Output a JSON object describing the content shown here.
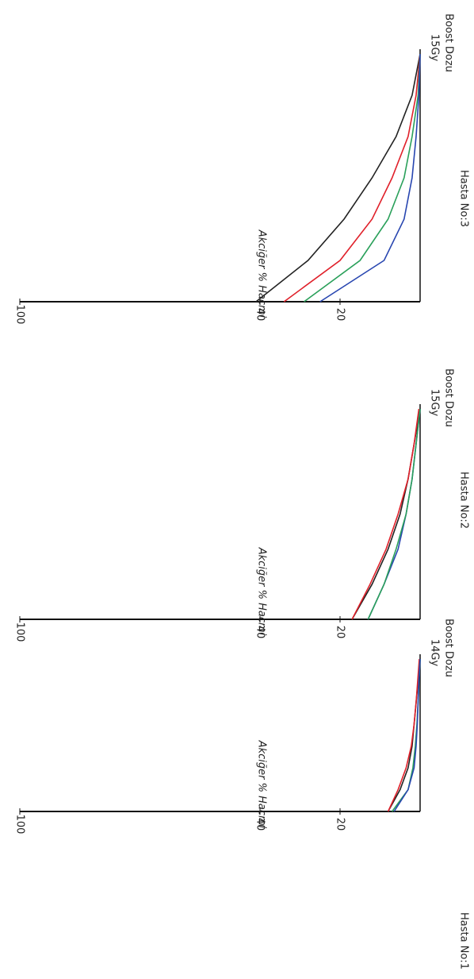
{
  "chart_data": [
    {
      "type": "line",
      "title": "Hasta No:1",
      "ylabel": "Akciğer % Hacmi",
      "dose_label": "14Gy",
      "xlabel": "Boost Dozu",
      "x": [
        0,
        2,
        4,
        6,
        8,
        10,
        12,
        14
      ],
      "xlim": [
        0,
        14
      ],
      "ylim": [
        0,
        100
      ],
      "yticks": [
        20,
        40,
        100
      ],
      "series": [
        {
          "color": "#222222",
          "values": [
            8,
            5,
            3,
            2,
            1.5,
            1,
            0.5,
            0
          ]
        },
        {
          "color": "#e0202a",
          "values": [
            8,
            5.5,
            3.5,
            2.2,
            1.5,
            1,
            0.6,
            0.2
          ]
        },
        {
          "color": "#2aa05a",
          "values": [
            7,
            3,
            1.8,
            1.2,
            0.8,
            0.5,
            0.3,
            0
          ]
        },
        {
          "color": "#2846b0",
          "values": [
            6.5,
            3,
            1.5,
            1,
            0.7,
            0.5,
            0.3,
            0
          ]
        }
      ]
    },
    {
      "type": "line",
      "title": "Hasta No:2",
      "ylabel": "Akciğer % Hacmi",
      "dose_label": "15Gy",
      "xlabel": "Boost Dozu",
      "x": [
        0,
        2.5,
        5,
        7.5,
        10,
        12.5,
        15
      ],
      "xlim": [
        0,
        15
      ],
      "ylim": [
        0,
        100
      ],
      "yticks": [
        20,
        40,
        100
      ],
      "series": [
        {
          "color": "#222222",
          "values": [
            17,
            12,
            8,
            5,
            3,
            1.5,
            0
          ]
        },
        {
          "color": "#e0202a",
          "values": [
            17,
            12.5,
            8.5,
            5.5,
            3,
            1.5,
            0.3
          ]
        },
        {
          "color": "#2846b0",
          "values": [
            13,
            9,
            5.5,
            3.5,
            2,
            1,
            0
          ]
        },
        {
          "color": "#2aa05a",
          "values": [
            13,
            9,
            6,
            3.5,
            2,
            1,
            0
          ]
        }
      ]
    },
    {
      "type": "line",
      "title": "Hasta No:3",
      "ylabel": "Akciğer % Hacmi",
      "dose_label": "15Gy",
      "xlabel": "Boost Dozu",
      "x": [
        0,
        2.5,
        5,
        7.5,
        10,
        12.5,
        15
      ],
      "xlim": [
        0,
        15
      ],
      "ylim": [
        0,
        100
      ],
      "yticks": [
        20,
        40,
        100
      ],
      "series": [
        {
          "color": "#222222",
          "values": [
            41,
            28,
            19,
            12,
            6,
            2,
            0
          ]
        },
        {
          "color": "#e0202a",
          "values": [
            34,
            20,
            12,
            7,
            3,
            1,
            0
          ]
        },
        {
          "color": "#2aa05a",
          "values": [
            29,
            15,
            8,
            4,
            2,
            0.5,
            0
          ]
        },
        {
          "color": "#2846b0",
          "values": [
            25,
            9,
            4,
            2,
            1,
            0.3,
            0
          ]
        }
      ]
    }
  ]
}
